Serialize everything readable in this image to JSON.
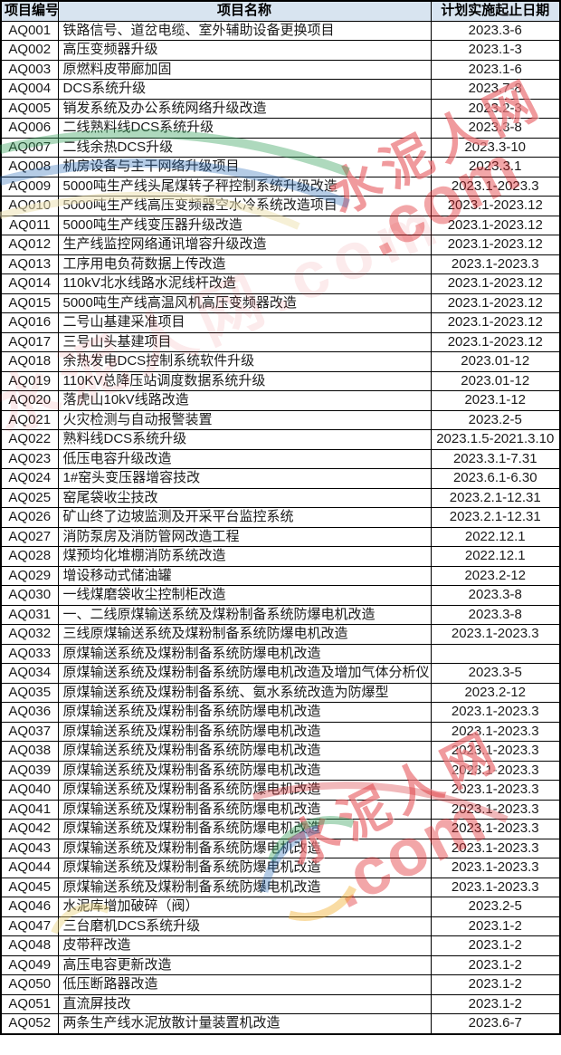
{
  "table": {
    "columns": [
      "项目编号",
      "项目名称",
      "计划实施起止日期"
    ],
    "header_bg": "#d8e4f0",
    "border_color": "#000000",
    "rows": [
      {
        "id": "AQ001",
        "name": "铁路信号、道岔电缆、室外辅助设备更换项目",
        "dates": "2023.3-6"
      },
      {
        "id": "AQ002",
        "name": "高压变频器升级",
        "dates": "2023.1-3"
      },
      {
        "id": "AQ003",
        "name": "原燃料皮带廊加固",
        "dates": "2023.1-6"
      },
      {
        "id": "AQ004",
        "name": "DCS系统升级",
        "dates": "2023.7-8"
      },
      {
        "id": "AQ005",
        "name": "销发系统及办公系统网络升级改造",
        "dates": "2023.2-3"
      },
      {
        "id": "AQ006",
        "name": "二线熟料线DCS系统升级",
        "dates": "2023.3-8"
      },
      {
        "id": "AQ007",
        "name": "二线余热DCS升级",
        "dates": "2023.3-10"
      },
      {
        "id": "AQ008",
        "name": "机房设备与主干网络升级项目",
        "dates": "2023.3.1"
      },
      {
        "id": "AQ009",
        "name": "5000吨生产线头尾煤转子秤控制系统升级改造",
        "dates": "2023.1-2023.3"
      },
      {
        "id": "AQ010",
        "name": "5000吨生产线高压变频器空水冷系统改造项目",
        "dates": "2023.1-2023.12"
      },
      {
        "id": "AQ011",
        "name": "5000吨生产线变压器升级改造",
        "dates": "2023.1-2023.12"
      },
      {
        "id": "AQ012",
        "name": "生产线监控网络通讯增容升级改造",
        "dates": "2023.1-2023.12"
      },
      {
        "id": "AQ013",
        "name": "工序用电负荷数据上传改造",
        "dates": "2023.1-2023.3"
      },
      {
        "id": "AQ014",
        "name": "110kV北水线路水泥线杆改造",
        "dates": "2023.1-2023.12"
      },
      {
        "id": "AQ015",
        "name": "5000吨生产线高温风机高压变频器改造",
        "dates": "2023.1-2023.12"
      },
      {
        "id": "AQ016",
        "name": "二号山基建采准项目",
        "dates": "2023.1-2023.12"
      },
      {
        "id": "AQ017",
        "name": "三号山头基建项目",
        "dates": "2023.1-2023.12"
      },
      {
        "id": "AQ018",
        "name": "余热发电DCS控制系统软件升级",
        "dates": "2023.01-12"
      },
      {
        "id": "AQ019",
        "name": "110KV总降压站调度数据系统升级",
        "dates": "2023.01-12"
      },
      {
        "id": "AQ020",
        "name": "落虎山10kV线路改造",
        "dates": "2023.1-12"
      },
      {
        "id": "AQ021",
        "name": "火灾检测与自动报警装置",
        "dates": "2023.2-5"
      },
      {
        "id": "AQ022",
        "name": "熟料线DCS系统升级",
        "dates": "2023.1.5-2021.3.10"
      },
      {
        "id": "AQ023",
        "name": "低压电容升级改造",
        "dates": "2023.3.1-7.31"
      },
      {
        "id": "AQ024",
        "name": "1#窑头变压器增容技改",
        "dates": "2023.6.1-6.30"
      },
      {
        "id": "AQ025",
        "name": "窑尾袋收尘技改",
        "dates": "2023.2.1-12.31"
      },
      {
        "id": "AQ026",
        "name": "矿山终了边坡监测及开采平台监控系统",
        "dates": "2023.2.1-12.31"
      },
      {
        "id": "AQ027",
        "name": "消防泵房及消防管网改造工程",
        "dates": "2022.12.1"
      },
      {
        "id": "AQ028",
        "name": "煤预均化堆棚消防系统改造",
        "dates": "2022.12.1"
      },
      {
        "id": "AQ029",
        "name": "增设移动式储油罐",
        "dates": "2023.2-12"
      },
      {
        "id": "AQ030",
        "name": "一线煤磨袋收尘控制柜改造",
        "dates": "2023.3-8"
      },
      {
        "id": "AQ031",
        "name": "一、二线原煤输送系统及煤粉制备系统防爆电机改造",
        "dates": "2023.3-8"
      },
      {
        "id": "AQ032",
        "name": "三线原煤输送系统及煤粉制备系统防爆电机改造",
        "dates": "2023.1-2023.3"
      },
      {
        "id": "AQ033",
        "name": "原煤输送系统及煤粉制备系统防爆电机改造",
        "dates": ""
      },
      {
        "id": "AQ034",
        "name": "原煤输送系统及煤粉制备系统防爆电机改造及增加气体分析仪",
        "dates": "2023.3-5"
      },
      {
        "id": "AQ035",
        "name": "原煤输送系统及煤粉制备系统、氨水系统改造为防爆型",
        "dates": "2023.2-12"
      },
      {
        "id": "AQ036",
        "name": "原煤输送系统及煤粉制备系统防爆电机改造",
        "dates": "2023.1-2023.3"
      },
      {
        "id": "AQ037",
        "name": "原煤输送系统及煤粉制备系统防爆电机改造",
        "dates": "2023.1-2023.3"
      },
      {
        "id": "AQ038",
        "name": "原煤输送系统及煤粉制备系统防爆电机改造",
        "dates": "2023.1-2023.3"
      },
      {
        "id": "AQ039",
        "name": "原煤输送系统及煤粉制备系统防爆电机改造",
        "dates": "2023.1-2023.3"
      },
      {
        "id": "AQ040",
        "name": "原煤输送系统及煤粉制备系统防爆电机改造",
        "dates": "2023.1-2023.3"
      },
      {
        "id": "AQ041",
        "name": "原煤输送系统及煤粉制备系统防爆电机改造",
        "dates": "2023.1-2023.3"
      },
      {
        "id": "AQ042",
        "name": "原煤输送系统及煤粉制备系统防爆电机改造",
        "dates": "2023.1-2023.3"
      },
      {
        "id": "AQ043",
        "name": "原煤输送系统及煤粉制备系统防爆电机改造",
        "dates": "2023.1-2023.3"
      },
      {
        "id": "AQ044",
        "name": "原煤输送系统及煤粉制备系统防爆电机改造",
        "dates": "2023.1-2023.3"
      },
      {
        "id": "AQ045",
        "name": "原煤输送系统及煤粉制备系统防爆电机改造",
        "dates": "2023.1-2023.3"
      },
      {
        "id": "AQ046",
        "name": "水泥库增加破碎（阀）",
        "dates": "2023.2-5"
      },
      {
        "id": "AQ047",
        "name": "三台磨机DCS系统升级",
        "dates": "2023.1-2"
      },
      {
        "id": "AQ048",
        "name": "皮带秤改造",
        "dates": "2023.1-2"
      },
      {
        "id": "AQ049",
        "name": "高压电容更新改造",
        "dates": "2023.1-2"
      },
      {
        "id": "AQ050",
        "name": "低压断路器改造",
        "dates": "2023.1-2"
      },
      {
        "id": "AQ051",
        "name": "直流屏技改",
        "dates": "2023.1-2"
      },
      {
        "id": "AQ052",
        "name": "两条生产线水泥放散计量装置机改造",
        "dates": "2023.6-7"
      }
    ]
  },
  "watermark": {
    "brand_text": "水泥人网",
    "domain_text": ".com",
    "faint_text": "水泥人网.com",
    "color": "#de2026"
  }
}
